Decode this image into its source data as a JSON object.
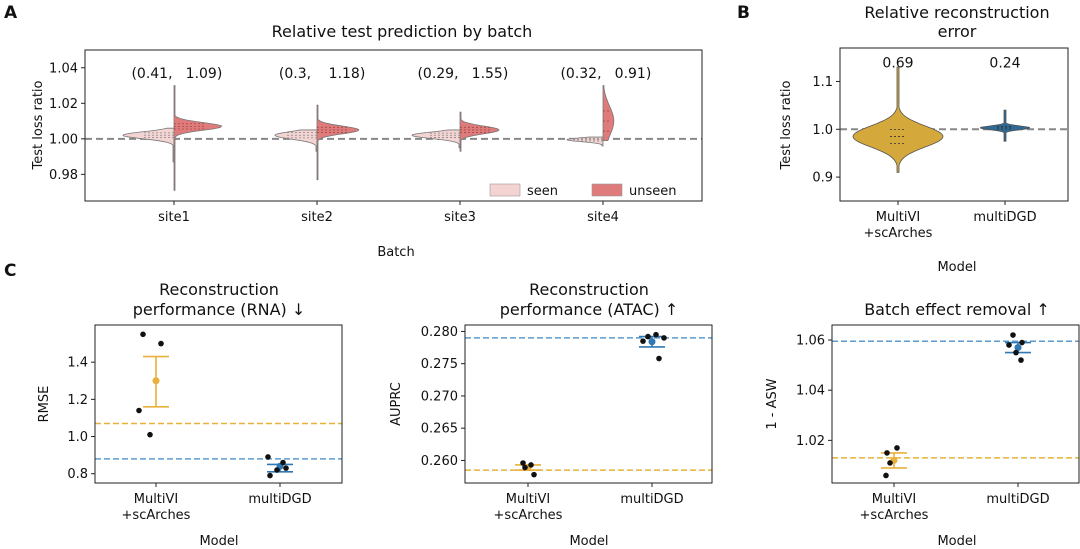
{
  "panel_letters": [
    "A",
    "B",
    "C"
  ],
  "colors": {
    "seen": "#f4d4d2",
    "unseen": "#e07b7b",
    "multivi": "#d4a83a",
    "multidgd": "#2f6a96",
    "multivi_point": "#e8b13b",
    "multidgd_point": "#2f78b4",
    "ref_multivi": "#e8b13b",
    "ref_multidgd": "#5b9bd0",
    "reference_line": "#888888"
  },
  "chart_data": [
    {
      "id": "A",
      "type": "violin",
      "title": "Relative test prediction by batch",
      "xlabel": "Batch",
      "ylabel": "Test loss ratio",
      "categories": [
        "site1",
        "site2",
        "site3",
        "site4"
      ],
      "ylim": [
        0.965,
        1.05
      ],
      "yticks": [
        "0.98",
        "1.00",
        "1.02",
        "1.04"
      ],
      "ytick_values": [
        0.98,
        1.0,
        1.02,
        1.04
      ],
      "reference_line": 1.0,
      "annotations": [
        {
          "left": "(0.41,",
          "right": "1.09)"
        },
        {
          "left": "(0.3,",
          "right": "1.18)"
        },
        {
          "left": "(0.29,",
          "right": "1.55)"
        },
        {
          "left": "(0.32,",
          "right": "0.91)"
        }
      ],
      "annotation_y": 1.037,
      "legend": [
        "seen",
        "unseen"
      ],
      "legend_position": "lower-right",
      "series": [
        {
          "name": "seen",
          "min": [
            0.987,
            0.993,
            0.995,
            0.996
          ],
          "max": [
            1.006,
            1.005,
            1.005,
            1.001
          ],
          "peak": [
            1.002,
            1.002,
            1.002,
            0.9995
          ],
          "width": [
            0.85,
            0.7,
            0.8,
            0.6
          ],
          "spread": [
            0.002,
            0.0022,
            0.0018,
            0.0011
          ]
        },
        {
          "name": "unseen",
          "min": [
            0.971,
            0.977,
            0.993,
            0.999
          ],
          "max": [
            1.03,
            1.019,
            1.015,
            1.03
          ],
          "peak": [
            1.007,
            1.005,
            1.005,
            1.01
          ],
          "width": [
            0.8,
            0.7,
            0.65,
            0.18
          ],
          "spread": [
            0.0022,
            0.0022,
            0.0022,
            0.0085
          ]
        }
      ]
    },
    {
      "id": "B",
      "type": "violin",
      "title_lines": [
        "Relative reconstruction",
        "error"
      ],
      "xlabel": "Model",
      "ylabel": "Test loss ratio",
      "categories": [
        [
          "MultiVI",
          "+scArches"
        ],
        [
          "multiDGD"
        ]
      ],
      "ylim": [
        0.85,
        1.17
      ],
      "yticks": [
        "0.9",
        "1.0",
        "1.1"
      ],
      "ytick_values": [
        0.9,
        1.0,
        1.1
      ],
      "reference_line": 1.0,
      "annotations": [
        "0.69",
        "0.24"
      ],
      "annotation_y": 1.14,
      "series": [
        {
          "name": "MultiVI\n+scArches",
          "min": 0.91,
          "max": 1.13,
          "peak": 0.985,
          "width": 1.0,
          "spread": 0.022
        },
        {
          "name": "multiDGD",
          "min": 0.975,
          "max": 1.04,
          "peak": 1.003,
          "width": 0.55,
          "spread": 0.004
        }
      ]
    },
    {
      "id": "C1",
      "type": "scatter",
      "title_lines": [
        "Reconstruction",
        "performance (RNA) ↓"
      ],
      "xlabel": "Model",
      "ylabel": "RMSE",
      "categories": [
        [
          "MultiVI",
          "+scArches"
        ],
        [
          "multiDGD"
        ]
      ],
      "ylim": [
        0.75,
        1.6
      ],
      "yticks": [
        "0.8",
        "1.0",
        "1.2",
        "1.4"
      ],
      "ytick_values": [
        0.8,
        1.0,
        1.2,
        1.4
      ],
      "reference_lines": [
        {
          "model": "MultiVI",
          "y": 1.07
        },
        {
          "model": "multiDGD",
          "y": 0.88
        }
      ],
      "points": [
        [
          1.55,
          1.5,
          1.14,
          1.01
        ],
        [
          0.89,
          0.86,
          0.83,
          0.82,
          0.79
        ]
      ],
      "mean": [
        1.3,
        0.84
      ],
      "errorbar": [
        [
          1.16,
          1.43
        ],
        [
          0.81,
          0.85
        ]
      ]
    },
    {
      "id": "C2",
      "type": "scatter",
      "title_lines": [
        "Reconstruction",
        "performance (ATAC) ↑"
      ],
      "xlabel": "Model",
      "ylabel": "AUPRC",
      "categories": [
        [
          "MultiVI",
          "+scArches"
        ],
        [
          "multiDGD"
        ]
      ],
      "ylim": [
        0.2565,
        0.281
      ],
      "yticks": [
        "0.260",
        "0.265",
        "0.270",
        "0.275",
        "0.280"
      ],
      "ytick_values": [
        0.26,
        0.265,
        0.27,
        0.275,
        0.28
      ],
      "reference_lines": [
        {
          "model": "MultiVI",
          "y": 0.2585
        },
        {
          "model": "multiDGD",
          "y": 0.279
        }
      ],
      "points": [
        [
          0.2596,
          0.2593,
          0.2589,
          0.2578
        ],
        [
          0.2795,
          0.2792,
          0.279,
          0.2785,
          0.2758
        ]
      ],
      "mean": [
        0.2589,
        0.2784
      ],
      "errorbar": [
        [
          0.2585,
          0.2593
        ],
        [
          0.2776,
          0.2792
        ]
      ]
    },
    {
      "id": "C3",
      "type": "scatter",
      "title": "Batch effect removal ↑",
      "xlabel": "Model",
      "ylabel": "1 - ASW",
      "categories": [
        [
          "MultiVI",
          "+scArches"
        ],
        [
          "multiDGD"
        ]
      ],
      "ylim": [
        1.003,
        1.066
      ],
      "yticks": [
        "1.02",
        "1.04",
        "1.06"
      ],
      "ytick_values": [
        1.02,
        1.04,
        1.06
      ],
      "reference_lines": [
        {
          "model": "MultiVI",
          "y": 1.013
        },
        {
          "model": "multiDGD",
          "y": 1.0595
        }
      ],
      "points": [
        [
          1.017,
          1.015,
          1.011,
          1.006
        ],
        [
          1.062,
          1.059,
          1.058,
          1.055,
          1.052
        ]
      ],
      "mean": [
        1.012,
        1.057
      ],
      "errorbar": [
        [
          1.009,
          1.015
        ],
        [
          1.055,
          1.059
        ]
      ]
    }
  ]
}
